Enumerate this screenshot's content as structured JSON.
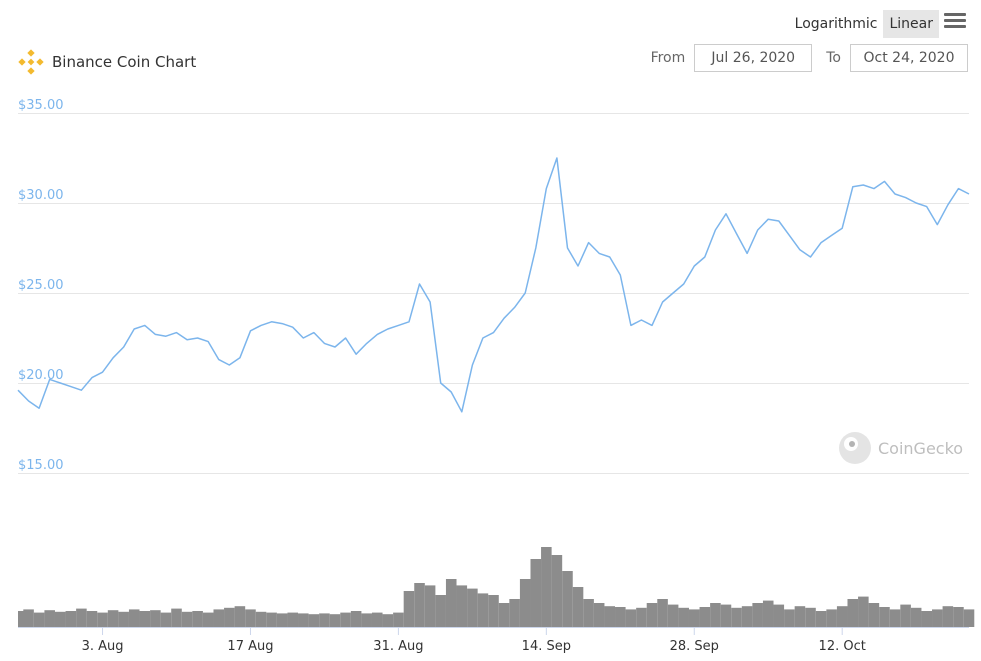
{
  "toolbar": {
    "logarithmic_label": "Logarithmic",
    "linear_label": "Linear",
    "active_scale": "Linear"
  },
  "header": {
    "title": "Binance Coin Chart",
    "from_label": "From",
    "from_value": "Jul 26, 2020",
    "to_label": "To",
    "to_value": "Oct 24, 2020"
  },
  "watermark": "CoinGecko",
  "colors": {
    "line": "#7cb5ec",
    "volume": "#8c8c8c",
    "grid": "#e6e6e6",
    "logo": "#f3ba2f"
  },
  "chart_data": [
    {
      "type": "line",
      "title": "Binance Coin Chart",
      "xlabel": "",
      "ylabel": "",
      "x_range": [
        "2020-07-26",
        "2020-10-24"
      ],
      "ylim": [
        15,
        35
      ],
      "y_ticks": [
        "$15.00",
        "$20.00",
        "$25.00",
        "$30.00",
        "$35.00"
      ],
      "x_ticks": [
        "3. Aug",
        "17 Aug",
        "31. Aug",
        "14. Sep",
        "28. Sep",
        "12. Oct"
      ],
      "grid": true,
      "scale": "linear",
      "series": [
        {
          "x": [
            "2020-07-26",
            "2020-07-27",
            "2020-07-28",
            "2020-07-29",
            "2020-07-30",
            "2020-07-31",
            "2020-08-01",
            "2020-08-02",
            "2020-08-03",
            "2020-08-04",
            "2020-08-05",
            "2020-08-06",
            "2020-08-07",
            "2020-08-08",
            "2020-08-09",
            "2020-08-10",
            "2020-08-11",
            "2020-08-12",
            "2020-08-13",
            "2020-08-14",
            "2020-08-15",
            "2020-08-16",
            "2020-08-17",
            "2020-08-18",
            "2020-08-19",
            "2020-08-20",
            "2020-08-21",
            "2020-08-22",
            "2020-08-23",
            "2020-08-24",
            "2020-08-25",
            "2020-08-26",
            "2020-08-27",
            "2020-08-28",
            "2020-08-29",
            "2020-08-30",
            "2020-08-31",
            "2020-09-01",
            "2020-09-02",
            "2020-09-03",
            "2020-09-04",
            "2020-09-05",
            "2020-09-06",
            "2020-09-07",
            "2020-09-08",
            "2020-09-09",
            "2020-09-10",
            "2020-09-11",
            "2020-09-12",
            "2020-09-13",
            "2020-09-14",
            "2020-09-15",
            "2020-09-16",
            "2020-09-17",
            "2020-09-18",
            "2020-09-19",
            "2020-09-20",
            "2020-09-21",
            "2020-09-22",
            "2020-09-23",
            "2020-09-24",
            "2020-09-25",
            "2020-09-26",
            "2020-09-27",
            "2020-09-28",
            "2020-09-29",
            "2020-09-30",
            "2020-10-01",
            "2020-10-02",
            "2020-10-03",
            "2020-10-04",
            "2020-10-05",
            "2020-10-06",
            "2020-10-07",
            "2020-10-08",
            "2020-10-09",
            "2020-10-10",
            "2020-10-11",
            "2020-10-12",
            "2020-10-13",
            "2020-10-14",
            "2020-10-15",
            "2020-10-16",
            "2020-10-17",
            "2020-10-18",
            "2020-10-19",
            "2020-10-20",
            "2020-10-21",
            "2020-10-22",
            "2020-10-23",
            "2020-10-24"
          ],
          "values": [
            19.6,
            19.0,
            18.6,
            20.2,
            20.0,
            19.8,
            19.6,
            20.3,
            20.6,
            21.4,
            22.0,
            23.0,
            23.2,
            22.7,
            22.6,
            22.8,
            22.4,
            22.5,
            22.3,
            21.3,
            21.0,
            21.4,
            22.9,
            23.2,
            23.4,
            23.3,
            23.1,
            22.5,
            22.8,
            22.2,
            22.0,
            22.5,
            21.6,
            22.2,
            22.7,
            23.0,
            23.2,
            23.4,
            25.5,
            24.5,
            20.0,
            19.5,
            18.4,
            21.0,
            22.5,
            22.8,
            23.6,
            24.2,
            25.0,
            27.5,
            30.8,
            32.5,
            27.5,
            26.5,
            27.8,
            27.2,
            27.0,
            26.0,
            23.2,
            23.5,
            23.2,
            24.5,
            25.0,
            25.5,
            26.5,
            27.0,
            28.5,
            29.4,
            28.3,
            27.2,
            28.5,
            29.1,
            29.0,
            28.2,
            27.4,
            27.0,
            27.8,
            28.2,
            28.6,
            30.9,
            31.0,
            30.8,
            31.2,
            30.5,
            30.3,
            30.0,
            29.8,
            28.8,
            29.9,
            30.8,
            30.5
          ]
        }
      ]
    },
    {
      "type": "area",
      "title": "",
      "xlabel": "",
      "ylabel": "",
      "x_range": [
        "2020-07-26",
        "2020-10-24"
      ],
      "series": [
        {
          "x": [
            "2020-07-26",
            "2020-07-27",
            "2020-07-28",
            "2020-07-29",
            "2020-07-30",
            "2020-07-31",
            "2020-08-01",
            "2020-08-02",
            "2020-08-03",
            "2020-08-04",
            "2020-08-05",
            "2020-08-06",
            "2020-08-07",
            "2020-08-08",
            "2020-08-09",
            "2020-08-10",
            "2020-08-11",
            "2020-08-12",
            "2020-08-13",
            "2020-08-14",
            "2020-08-15",
            "2020-08-16",
            "2020-08-17",
            "2020-08-18",
            "2020-08-19",
            "2020-08-20",
            "2020-08-21",
            "2020-08-22",
            "2020-08-23",
            "2020-08-24",
            "2020-08-25",
            "2020-08-26",
            "2020-08-27",
            "2020-08-28",
            "2020-08-29",
            "2020-08-30",
            "2020-08-31",
            "2020-09-01",
            "2020-09-02",
            "2020-09-03",
            "2020-09-04",
            "2020-09-05",
            "2020-09-06",
            "2020-09-07",
            "2020-09-08",
            "2020-09-09",
            "2020-09-10",
            "2020-09-11",
            "2020-09-12",
            "2020-09-13",
            "2020-09-14",
            "2020-09-15",
            "2020-09-16",
            "2020-09-17",
            "2020-09-18",
            "2020-09-19",
            "2020-09-20",
            "2020-09-21",
            "2020-09-22",
            "2020-09-23",
            "2020-09-24",
            "2020-09-25",
            "2020-09-26",
            "2020-09-27",
            "2020-09-28",
            "2020-09-29",
            "2020-09-30",
            "2020-10-01",
            "2020-10-02",
            "2020-10-03",
            "2020-10-04",
            "2020-10-05",
            "2020-10-06",
            "2020-10-07",
            "2020-10-08",
            "2020-10-09",
            "2020-10-10",
            "2020-10-11",
            "2020-10-12",
            "2020-10-13",
            "2020-10-14",
            "2020-10-15",
            "2020-10-16",
            "2020-10-17",
            "2020-10-18",
            "2020-10-19",
            "2020-10-20",
            "2020-10-21",
            "2020-10-22",
            "2020-10-23",
            "2020-10-24"
          ],
          "values": [
            0.2,
            0.22,
            0.18,
            0.21,
            0.19,
            0.2,
            0.23,
            0.2,
            0.18,
            0.21,
            0.19,
            0.22,
            0.2,
            0.21,
            0.18,
            0.23,
            0.19,
            0.2,
            0.18,
            0.22,
            0.24,
            0.26,
            0.22,
            0.19,
            0.18,
            0.17,
            0.18,
            0.17,
            0.16,
            0.17,
            0.16,
            0.18,
            0.2,
            0.17,
            0.18,
            0.16,
            0.18,
            0.45,
            0.55,
            0.52,
            0.4,
            0.6,
            0.52,
            0.48,
            0.42,
            0.4,
            0.3,
            0.35,
            0.6,
            0.85,
            1.0,
            0.9,
            0.7,
            0.5,
            0.35,
            0.3,
            0.26,
            0.25,
            0.22,
            0.24,
            0.3,
            0.35,
            0.28,
            0.24,
            0.22,
            0.25,
            0.3,
            0.28,
            0.24,
            0.26,
            0.3,
            0.33,
            0.28,
            0.22,
            0.26,
            0.24,
            0.2,
            0.22,
            0.26,
            0.35,
            0.38,
            0.3,
            0.25,
            0.22,
            0.28,
            0.24,
            0.2,
            0.22,
            0.26,
            0.25,
            0.22
          ]
        }
      ]
    }
  ]
}
